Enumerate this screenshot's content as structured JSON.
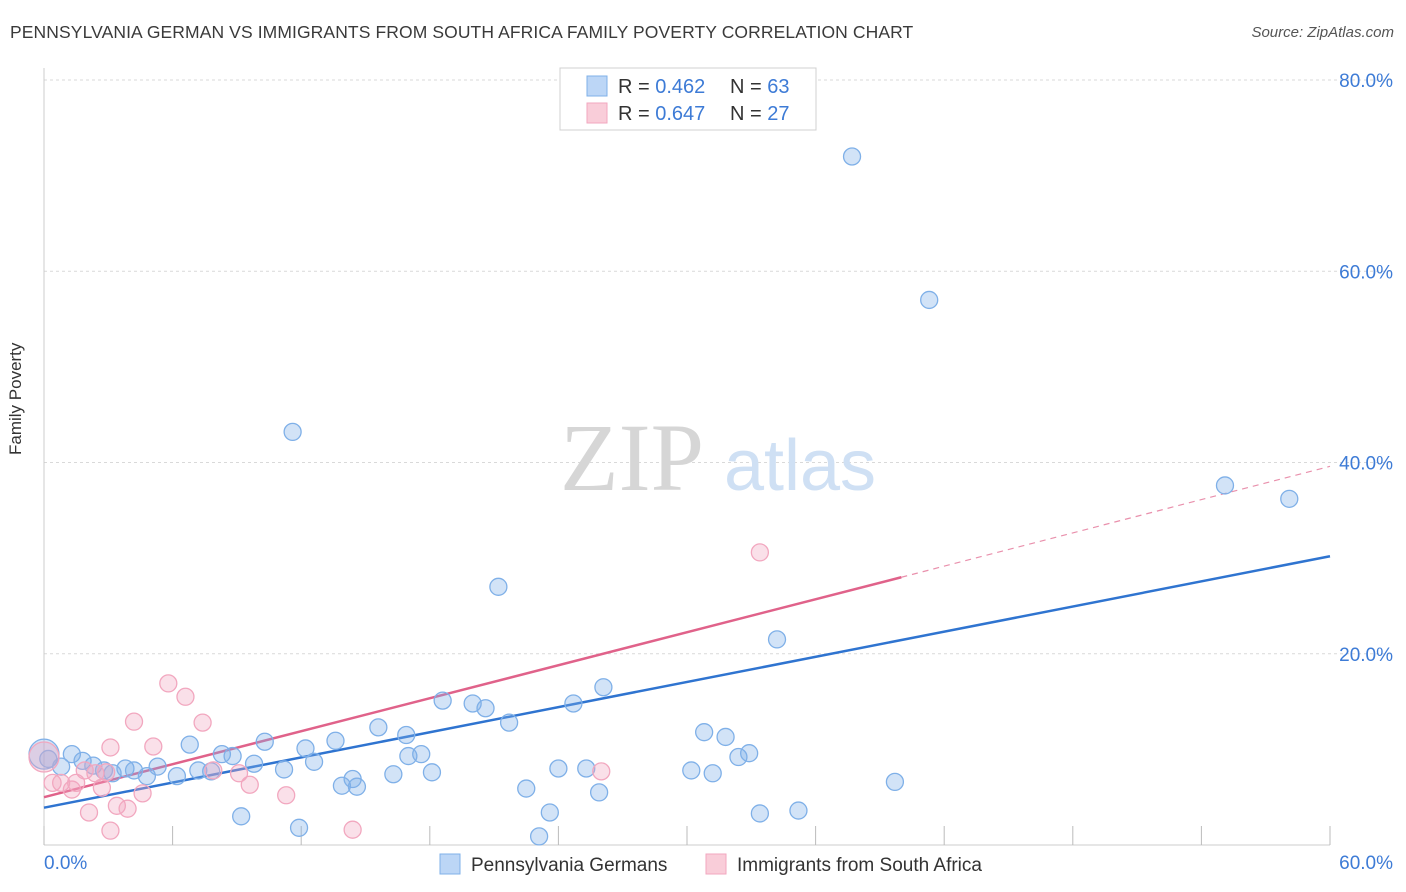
{
  "title": "PENNSYLVANIA GERMAN VS IMMIGRANTS FROM SOUTH AFRICA FAMILY POVERTY CORRELATION CHART",
  "source": "Source: ZipAtlas.com",
  "watermark": {
    "zip": "ZIP",
    "atlas": "atlas"
  },
  "colors": {
    "blue": "#7fb0e8",
    "blue_line": "#2f74d0",
    "pink": "#f2a7bf",
    "pink_line": "#e0628a",
    "tick_text": "#3d7bd6",
    "grid": "#d9d9d9"
  },
  "chart_data": {
    "type": "scatter",
    "title": "PENNSYLVANIA GERMAN VS IMMIGRANTS FROM SOUTH AFRICA FAMILY POVERTY CORRELATION CHART",
    "xlabel": "",
    "ylabel": "Family Poverty",
    "xlim": [
      0,
      60
    ],
    "ylim": [
      0,
      80
    ],
    "x_tick_labels": [
      "0.0%",
      "60.0%"
    ],
    "y_ticks": [
      20,
      40,
      60,
      80
    ],
    "y_tick_labels": [
      "20.0%",
      "40.0%",
      "60.0%",
      "80.0%"
    ],
    "grid": true,
    "legend_position": "top-center",
    "legend": [
      {
        "r_label": "R = ",
        "r_value": "0.462",
        "n_label": "N = ",
        "n_value": "63"
      },
      {
        "r_label": "R = ",
        "r_value": "0.647",
        "n_label": "N = ",
        "n_value": "27"
      }
    ],
    "series": [
      {
        "name": "Pennsylvania Germans",
        "color": "#7fb0e8",
        "trend": {
          "x": [
            0,
            60
          ],
          "y": [
            3.9,
            30.2
          ],
          "style": "solid"
        },
        "points": [
          [
            0,
            9.5
          ],
          [
            0.8,
            8.2
          ],
          [
            1.3,
            9.5
          ],
          [
            1.8,
            8.8
          ],
          [
            2.3,
            8.3
          ],
          [
            2.8,
            7.8
          ],
          [
            3.2,
            7.5
          ],
          [
            3.8,
            8.0
          ],
          [
            4.2,
            7.8
          ],
          [
            4.8,
            7.2
          ],
          [
            5.3,
            8.2
          ],
          [
            6.2,
            7.2
          ],
          [
            6.8,
            10.5
          ],
          [
            7.2,
            7.8
          ],
          [
            7.8,
            7.7
          ],
          [
            8.3,
            9.5
          ],
          [
            8.8,
            9.3
          ],
          [
            9.2,
            3.0
          ],
          [
            9.8,
            8.5
          ],
          [
            10.3,
            10.8
          ],
          [
            11.2,
            7.9
          ],
          [
            11.6,
            43.2
          ],
          [
            11.9,
            1.8
          ],
          [
            12.2,
            10.1
          ],
          [
            12.6,
            8.7
          ],
          [
            13.6,
            10.9
          ],
          [
            13.9,
            6.2
          ],
          [
            14.4,
            6.9
          ],
          [
            14.6,
            6.1
          ],
          [
            15.6,
            12.3
          ],
          [
            16.3,
            7.4
          ],
          [
            16.9,
            11.5
          ],
          [
            17.0,
            9.3
          ],
          [
            17.6,
            9.5
          ],
          [
            18.1,
            7.6
          ],
          [
            18.6,
            15.1
          ],
          [
            20.0,
            14.8
          ],
          [
            20.6,
            14.3
          ],
          [
            21.2,
            27.0
          ],
          [
            21.7,
            12.8
          ],
          [
            22.5,
            5.9
          ],
          [
            23.1,
            0.9
          ],
          [
            23.6,
            3.4
          ],
          [
            24.0,
            8.0
          ],
          [
            24.7,
            14.8
          ],
          [
            25.3,
            8.0
          ],
          [
            25.9,
            5.5
          ],
          [
            26.1,
            16.5
          ],
          [
            30.2,
            7.8
          ],
          [
            30.8,
            11.8
          ],
          [
            31.2,
            7.5
          ],
          [
            31.8,
            11.3
          ],
          [
            32.4,
            9.2
          ],
          [
            32.9,
            9.6
          ],
          [
            33.4,
            3.3
          ],
          [
            34.2,
            21.5
          ],
          [
            35.2,
            3.6
          ],
          [
            37.7,
            72.0
          ],
          [
            39.7,
            6.6
          ],
          [
            41.3,
            57.0
          ],
          [
            55.1,
            37.6
          ],
          [
            58.1,
            36.2
          ],
          [
            0.2,
            9.0
          ]
        ]
      },
      {
        "name": "Immigrants from South Africa",
        "color": "#f2a7bf",
        "trend": {
          "x": [
            0,
            40
          ],
          "y": [
            5.0,
            28.0
          ],
          "x_dashed_end": 60,
          "y_dashed_end": 39.6,
          "style": "solid"
        },
        "points": [
          [
            0,
            9.2
          ],
          [
            0.4,
            6.5
          ],
          [
            0.8,
            6.5
          ],
          [
            1.3,
            5.8
          ],
          [
            1.5,
            6.5
          ],
          [
            1.9,
            7.8
          ],
          [
            2.1,
            3.4
          ],
          [
            2.4,
            7.5
          ],
          [
            2.7,
            6.0
          ],
          [
            2.9,
            7.6
          ],
          [
            3.1,
            10.2
          ],
          [
            3.1,
            1.5
          ],
          [
            3.4,
            4.1
          ],
          [
            3.9,
            3.8
          ],
          [
            4.2,
            12.9
          ],
          [
            4.6,
            5.4
          ],
          [
            5.1,
            10.3
          ],
          [
            5.8,
            16.9
          ],
          [
            6.6,
            15.5
          ],
          [
            7.4,
            12.8
          ],
          [
            7.9,
            7.8
          ],
          [
            9.1,
            7.5
          ],
          [
            9.6,
            6.3
          ],
          [
            11.3,
            5.2
          ],
          [
            14.4,
            1.6
          ],
          [
            26.0,
            7.7
          ],
          [
            33.4,
            30.6
          ]
        ]
      }
    ]
  }
}
